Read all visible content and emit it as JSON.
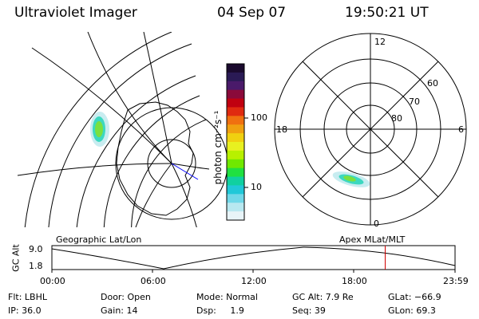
{
  "header": {
    "instrument": "Ultraviolet Imager",
    "date": "04 Sep 07",
    "time": "19:50:21 UT"
  },
  "colorbar": {
    "unit_label": "photon cm⁻²s⁻¹",
    "ticks": [
      {
        "label": "100",
        "value": 100
      },
      {
        "label": "10",
        "value": 10
      }
    ],
    "colors": [
      "#1a0a2e",
      "#2a1a55",
      "#4a1a6a",
      "#8a0a3a",
      "#c00010",
      "#e02a10",
      "#f07010",
      "#f0a010",
      "#f0d010",
      "#e8f020",
      "#b8f000",
      "#70e800",
      "#20e040",
      "#10d0a0",
      "#20c8d8",
      "#70d8e8",
      "#b8e8f0",
      "#e8f4f8"
    ]
  },
  "polar_labels": {
    "mlt_top": "12",
    "mlt_left": "18",
    "mlt_right": "6",
    "mlt_bottom": "0",
    "lat_60": "60",
    "lat_70": "70",
    "lat_80": "80"
  },
  "timeline": {
    "y_axis_label": "GC Alt",
    "y_max": "9.0",
    "y_min": "1.8",
    "left_caption": "Geographic Lat/Lon",
    "right_caption": "Apex MLat/MLT",
    "ticks": [
      "00:00",
      "06:00",
      "12:00",
      "18:00",
      "23:59"
    ],
    "current_time_hours": 19.84
  },
  "info": {
    "filter": "Flt: LBHL",
    "ip": "IP: 36.0",
    "door": "Door: Open",
    "gain": "Gain: 14",
    "mode": "Mode: Normal",
    "dsp": "Dsp:     1.9",
    "gc_alt": "GC Alt: 7.9 Re",
    "seq": "Seq: 39",
    "glat": "GLat: −66.9",
    "glon": "GLon: 69.3"
  }
}
